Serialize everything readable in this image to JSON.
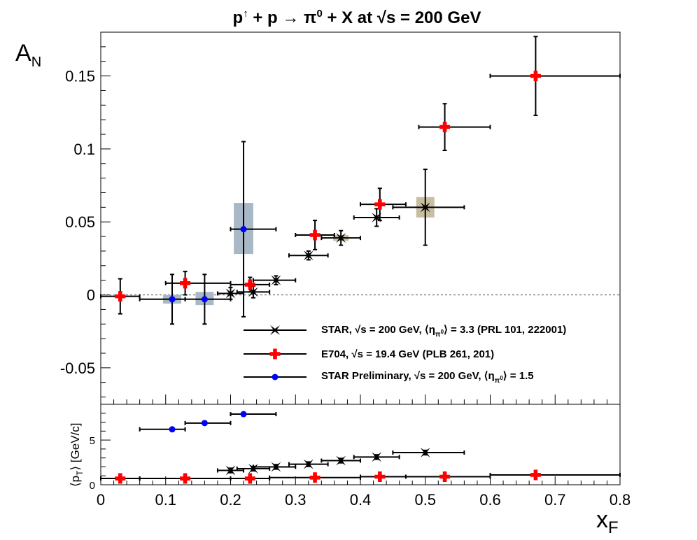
{
  "colors": {
    "star": "#000000",
    "e704": "#ff0000",
    "prelim": "#0000ff",
    "sys_star": "#c8bfa3",
    "sys_prelim": "#a9b8c6",
    "zero_line": "#888888"
  },
  "chart_data": [
    {
      "type": "scatter",
      "title": "p↑ + p → π0 + X at √s = 200 GeV",
      "xlabel": "",
      "ylabel": "",
      "xlim": [
        0,
        0.8
      ],
      "ylim": [
        -0.075,
        0.18
      ],
      "yticks": [
        "-0.05",
        "0",
        "0.05",
        "0.1",
        "0.15"
      ],
      "zero_line": true,
      "legend_position": "bottom-right",
      "series": [
        {
          "name": "STAR, √s = 200 GeV, ⟨ηπ0⟩ = 3.3 (PRL 101, 222001)",
          "marker": "star",
          "color": "#000000",
          "points": [
            {
              "x": 0.2,
              "y": 0.001,
              "xlo": 0.18,
              "xhi": 0.22,
              "ey": 0.004
            },
            {
              "x": 0.235,
              "y": 0.002,
              "xlo": 0.21,
              "xhi": 0.26,
              "ey": 0.004
            },
            {
              "x": 0.27,
              "y": 0.01,
              "xlo": 0.235,
              "xhi": 0.3,
              "ey": 0.003
            },
            {
              "x": 0.32,
              "y": 0.027,
              "xlo": 0.29,
              "xhi": 0.35,
              "ey": 0.003
            },
            {
              "x": 0.37,
              "y": 0.039,
              "xlo": 0.34,
              "xhi": 0.4,
              "ey": 0.005
            },
            {
              "x": 0.425,
              "y": 0.053,
              "xlo": 0.39,
              "xhi": 0.46,
              "ey": 0.006
            },
            {
              "x": 0.5,
              "y": 0.06,
              "xlo": 0.45,
              "xhi": 0.56,
              "ey": 0.026
            }
          ],
          "systematics": [
            {
              "x": 0.37,
              "ylo": 0.037,
              "yhi": 0.041,
              "halfwidth": 0.012
            },
            {
              "x": 0.5,
              "ylo": 0.053,
              "yhi": 0.067,
              "halfwidth": 0.014
            }
          ]
        },
        {
          "name": "E704, √s = 19.4 GeV (PLB 261, 201)",
          "marker": "cross",
          "color": "#ff0000",
          "points": [
            {
              "x": 0.03,
              "y": -0.001,
              "xlo": 0.0,
              "xhi": 0.06,
              "ey": 0.012
            },
            {
              "x": 0.13,
              "y": 0.008,
              "xlo": 0.1,
              "xhi": 0.2,
              "ey": 0.008
            },
            {
              "x": 0.23,
              "y": 0.007,
              "xlo": 0.2,
              "xhi": 0.26,
              "ey": 0.005
            },
            {
              "x": 0.33,
              "y": 0.041,
              "xlo": 0.3,
              "xhi": 0.36,
              "ey": 0.01
            },
            {
              "x": 0.43,
              "y": 0.062,
              "xlo": 0.4,
              "xhi": 0.47,
              "ey": 0.011
            },
            {
              "x": 0.53,
              "y": 0.115,
              "xlo": 0.49,
              "xhi": 0.6,
              "ey": 0.016
            },
            {
              "x": 0.67,
              "y": 0.15,
              "xlo": 0.6,
              "xhi": 0.8,
              "ey": 0.027
            }
          ]
        },
        {
          "name": "STAR Preliminary, √s = 200 GeV, ⟨ηπ0⟩ = 1.5",
          "marker": "circle",
          "color": "#0000ff",
          "points": [
            {
              "x": 0.11,
              "y": -0.003,
              "xlo": 0.06,
              "xhi": 0.13,
              "ey": 0.017
            },
            {
              "x": 0.16,
              "y": -0.003,
              "xlo": 0.13,
              "xhi": 0.2,
              "ey": 0.017
            },
            {
              "x": 0.22,
              "y": 0.045,
              "xlo": 0.2,
              "xhi": 0.27,
              "ey": 0.06
            }
          ],
          "systematics": [
            {
              "x": 0.11,
              "ylo": -0.006,
              "yhi": 0.0,
              "halfwidth": 0.014
            },
            {
              "x": 0.16,
              "ylo": -0.007,
              "yhi": 0.002,
              "halfwidth": 0.014
            },
            {
              "x": 0.22,
              "ylo": 0.028,
              "yhi": 0.063,
              "halfwidth": 0.015
            }
          ]
        }
      ]
    },
    {
      "type": "scatter",
      "xlabel": "",
      "ylabel": "",
      "xlim": [
        0,
        0.8
      ],
      "xticks": [
        "0",
        "0.1",
        "0.2",
        "0.3",
        "0.4",
        "0.5",
        "0.6",
        "0.7",
        "0.8"
      ],
      "ylim": [
        0,
        9
      ],
      "yticks": [
        "0",
        "5"
      ],
      "series": [
        {
          "name": "STAR",
          "marker": "star",
          "color": "#000000",
          "points": [
            {
              "x": 0.2,
              "y": 1.6,
              "xlo": 0.18,
              "xhi": 0.22,
              "ey": 0.25
            },
            {
              "x": 0.235,
              "y": 1.8,
              "xlo": 0.21,
              "xhi": 0.26,
              "ey": 0.25
            },
            {
              "x": 0.27,
              "y": 2.0,
              "xlo": 0.235,
              "xhi": 0.3,
              "ey": 0.25
            },
            {
              "x": 0.32,
              "y": 2.3,
              "xlo": 0.29,
              "xhi": 0.35,
              "ey": 0.25
            },
            {
              "x": 0.37,
              "y": 2.7,
              "xlo": 0.34,
              "xhi": 0.4,
              "ey": 0.25
            },
            {
              "x": 0.425,
              "y": 3.1,
              "xlo": 0.39,
              "xhi": 0.46,
              "ey": 0.25
            },
            {
              "x": 0.5,
              "y": 3.6,
              "xlo": 0.45,
              "xhi": 0.56,
              "ey": 0.25
            }
          ]
        },
        {
          "name": "E704",
          "marker": "cross",
          "color": "#ff0000",
          "points": [
            {
              "x": 0.03,
              "y": 0.7,
              "xlo": 0.0,
              "xhi": 0.06,
              "ey": 0
            },
            {
              "x": 0.13,
              "y": 0.7,
              "xlo": 0.06,
              "xhi": 0.2,
              "ey": 0
            },
            {
              "x": 0.23,
              "y": 0.7,
              "xlo": 0.2,
              "xhi": 0.26,
              "ey": 0
            },
            {
              "x": 0.33,
              "y": 0.8,
              "xlo": 0.26,
              "xhi": 0.4,
              "ey": 0
            },
            {
              "x": 0.43,
              "y": 0.9,
              "xlo": 0.4,
              "xhi": 0.47,
              "ey": 0
            },
            {
              "x": 0.53,
              "y": 0.9,
              "xlo": 0.47,
              "xhi": 0.6,
              "ey": 0
            },
            {
              "x": 0.67,
              "y": 1.1,
              "xlo": 0.6,
              "xhi": 0.8,
              "ey": 0
            }
          ]
        },
        {
          "name": "STAR Preliminary",
          "marker": "circle",
          "color": "#0000ff",
          "points": [
            {
              "x": 0.11,
              "y": 6.2,
              "xlo": 0.06,
              "xhi": 0.13,
              "ey": 0
            },
            {
              "x": 0.16,
              "y": 6.9,
              "xlo": 0.13,
              "xhi": 0.2,
              "ey": 0
            },
            {
              "x": 0.22,
              "y": 7.9,
              "xlo": 0.2,
              "xhi": 0.27,
              "ey": 0
            }
          ]
        }
      ]
    }
  ],
  "labels": {
    "title_main": "p",
    "title_arrow": "↑",
    "title_mid": " + p → π",
    "title_zero": "0",
    "title_end": " + X at ",
    "title_sqrt": "√s",
    "title_tail": " = 200 GeV",
    "yaxis_main": "A",
    "yaxis_sub": "N",
    "xaxis_main": "x",
    "xaxis_sub": "F",
    "pt_open": "⟨p",
    "pt_sub": "T",
    "pt_close": "⟩ [GeV/c]",
    "legend_star_a": "STAR, √s = 200 GeV, ⟨η",
    "legend_star_sub": "π",
    "legend_star_subsup": "0",
    "legend_star_b": "⟩ = 3.3 (PRL 101, 222001)",
    "legend_e704": "E704, √s = 19.4 GeV (PLB 261, 201)",
    "legend_prelim_a": "STAR Preliminary, √s = 200 GeV, ⟨η",
    "legend_prelim_sub": "π",
    "legend_prelim_subsup": "0",
    "legend_prelim_b": "⟩ = 1.5"
  }
}
